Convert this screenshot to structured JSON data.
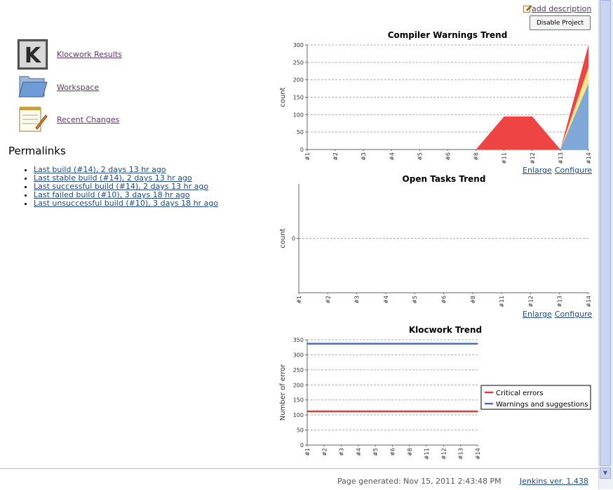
{
  "sidebar": {
    "items": [
      {
        "label": "Klocwork Results",
        "icon": "klocwork-icon"
      },
      {
        "label": "Workspace",
        "icon": "folder-icon"
      },
      {
        "label": "Recent Changes",
        "icon": "notepad-icon"
      }
    ]
  },
  "permalinks": {
    "title": "Permalinks",
    "items": [
      "Last build (#14), 2 days 13 hr ago",
      "Last stable build (#14), 2 days 13 hr ago",
      "Last successful build (#14), 2 days 13 hr ago",
      "Last failed build (#10), 3 days 18 hr ago",
      "Last unsuccessful build (#10), 3 days 18 hr ago"
    ]
  },
  "header": {
    "add_description": "add description",
    "disable_project": "Disable Project"
  },
  "charts": {
    "enlarge": "Enlarge",
    "configure": "Configure"
  },
  "chart_data": [
    {
      "type": "area",
      "title": "Compiler Warnings Trend",
      "ylabel": "count",
      "ylim": [
        0,
        300
      ],
      "yticks": [
        0,
        50,
        100,
        150,
        200,
        250,
        300
      ],
      "categories": [
        "#1",
        "#2",
        "#3",
        "#4",
        "#5",
        "#6",
        "#8",
        "#11",
        "#12",
        "#13",
        "#14"
      ],
      "series": [
        {
          "color": "#7fa7d8",
          "values": [
            0,
            0,
            0,
            0,
            0,
            0,
            0,
            0,
            0,
            0,
            190
          ]
        },
        {
          "color": "#f5e88a",
          "values": [
            0,
            0,
            0,
            0,
            0,
            0,
            0,
            0,
            0,
            0,
            45
          ]
        },
        {
          "color": "#ef4444",
          "values": [
            0,
            0,
            0,
            0,
            0,
            0,
            0,
            95,
            95,
            0,
            65
          ]
        }
      ],
      "grid": true
    },
    {
      "type": "area",
      "title": "Open Tasks Trend",
      "ylabel": "count",
      "yticks": [
        0
      ],
      "categories": [
        "#1",
        "#2",
        "#3",
        "#4",
        "#5",
        "#6",
        "#8",
        "#11",
        "#12",
        "#13",
        "#14"
      ],
      "series": [],
      "grid": true
    },
    {
      "type": "line",
      "title": "Klocwork Trend",
      "ylabel": "Number of error",
      "ylim": [
        0,
        350
      ],
      "yticks": [
        0,
        50,
        100,
        150,
        200,
        250,
        300,
        350
      ],
      "categories": [
        "#1",
        "#2",
        "#3",
        "#4",
        "#5",
        "#6",
        "#8",
        "#11",
        "#12",
        "#13",
        "#14"
      ],
      "series": [
        {
          "name": "Critical errors",
          "color": "#e53935",
          "values": [
            112,
            112,
            112,
            112,
            112,
            112,
            112,
            112,
            112,
            112,
            112
          ]
        },
        {
          "name": "Warnings and suggestions",
          "color": "#4a6fc0",
          "values": [
            337,
            337,
            337,
            337,
            337,
            337,
            337,
            337,
            337,
            337,
            337
          ]
        }
      ],
      "legend": "right",
      "grid": true
    }
  ],
  "footer": {
    "generated": "Page generated: Nov 15, 2011 2:43:48 PM",
    "version": "Jenkins ver. 1.438"
  }
}
